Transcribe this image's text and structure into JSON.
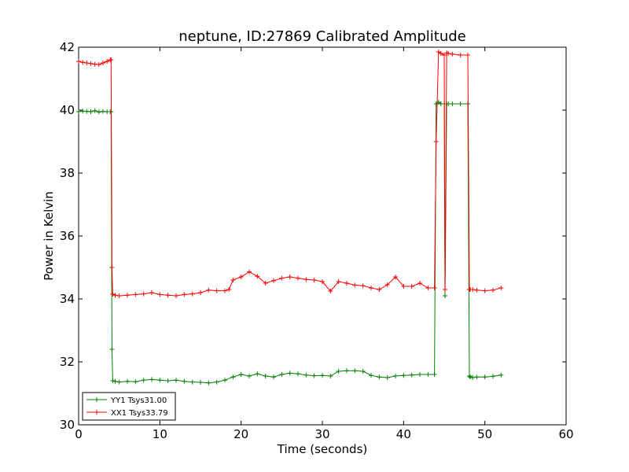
{
  "chart_data": {
    "type": "line",
    "title": "neptune, ID:27869 Calibrated Amplitude",
    "xlabel": "Time (seconds)",
    "ylabel": "Power in Kelvin",
    "xlim": [
      0,
      60
    ],
    "ylim": [
      30,
      42
    ],
    "xticks": [
      "0",
      "10",
      "20",
      "30",
      "40",
      "50",
      "60"
    ],
    "yticks": [
      "30",
      "32",
      "34",
      "36",
      "38",
      "40",
      "42"
    ],
    "grid": false,
    "legend_position": "lower-left",
    "series": [
      {
        "name": "YY1 Tsys31.00",
        "color": "#008000",
        "marker": "+",
        "x": [
          0,
          0.5,
          1,
          1.5,
          2,
          2.5,
          3,
          3.5,
          3.9,
          4.0,
          4.1,
          4.2,
          4.5,
          5,
          6,
          7,
          8,
          9,
          10,
          11,
          12,
          13,
          14,
          15,
          16,
          17,
          18,
          19,
          20,
          21,
          22,
          23,
          24,
          25,
          26,
          27,
          28,
          29,
          30,
          31,
          32,
          33,
          34,
          35,
          36,
          37,
          38,
          39,
          40,
          41,
          42,
          43,
          43.8,
          44.0,
          44.3,
          44.6,
          45.0,
          45.1,
          45.3,
          45.5,
          46,
          47,
          47.9,
          48.1,
          48.2,
          48.5,
          49,
          50,
          51,
          52
        ],
        "y": [
          39.95,
          39.97,
          39.96,
          39.95,
          39.98,
          39.94,
          39.96,
          39.95,
          39.95,
          39.95,
          32.4,
          31.4,
          31.38,
          31.36,
          31.38,
          31.37,
          31.42,
          31.44,
          31.42,
          31.4,
          31.42,
          31.38,
          31.36,
          31.35,
          31.33,
          31.36,
          31.42,
          31.52,
          31.6,
          31.55,
          31.62,
          31.55,
          31.52,
          31.6,
          31.64,
          31.62,
          31.58,
          31.56,
          31.57,
          31.55,
          31.7,
          31.72,
          31.72,
          31.7,
          31.57,
          31.52,
          31.5,
          31.55,
          31.57,
          31.58,
          31.6,
          31.6,
          31.6,
          40.2,
          40.25,
          40.2,
          40.2,
          34.1,
          40.2,
          40.2,
          40.2,
          40.2,
          40.2,
          31.55,
          31.52,
          31.5,
          31.52,
          31.52,
          31.54,
          31.58
        ]
      },
      {
        "name": "XX1 Tsys33.79",
        "color": "#ff0000",
        "marker": "+",
        "x": [
          0,
          0.5,
          1,
          1.5,
          2,
          2.5,
          3,
          3.5,
          3.9,
          4.0,
          4.1,
          4.2,
          4.5,
          5,
          6,
          7,
          8,
          9,
          10,
          11,
          12,
          13,
          14,
          15,
          16,
          17,
          18,
          18.5,
          19,
          20,
          21,
          22,
          23,
          24,
          25,
          26,
          27,
          28,
          29,
          30,
          31,
          32,
          33,
          34,
          35,
          36,
          37,
          38,
          39,
          40,
          41,
          42,
          43,
          43.8,
          44.0,
          44.3,
          44.6,
          45.0,
          45.1,
          45.3,
          45.5,
          46,
          47,
          47.9,
          48.1,
          48.2,
          48.5,
          49,
          50,
          51,
          52
        ],
        "y": [
          41.55,
          41.52,
          41.5,
          41.48,
          41.46,
          41.45,
          41.5,
          41.55,
          41.6,
          41.6,
          35.0,
          34.15,
          34.12,
          34.1,
          34.12,
          34.14,
          34.16,
          34.2,
          34.14,
          34.12,
          34.1,
          34.14,
          34.16,
          34.2,
          34.28,
          34.26,
          34.26,
          34.3,
          34.6,
          34.7,
          34.86,
          34.72,
          34.5,
          34.58,
          34.66,
          34.7,
          34.66,
          34.62,
          34.6,
          34.55,
          34.25,
          34.55,
          34.5,
          34.44,
          34.42,
          34.35,
          34.3,
          34.45,
          34.7,
          34.4,
          34.4,
          34.5,
          34.35,
          34.35,
          39.0,
          41.85,
          41.8,
          41.75,
          34.3,
          41.82,
          41.8,
          41.78,
          41.75,
          41.75,
          34.3,
          34.3,
          34.3,
          34.28,
          34.26,
          34.28,
          34.35
        ]
      }
    ]
  }
}
